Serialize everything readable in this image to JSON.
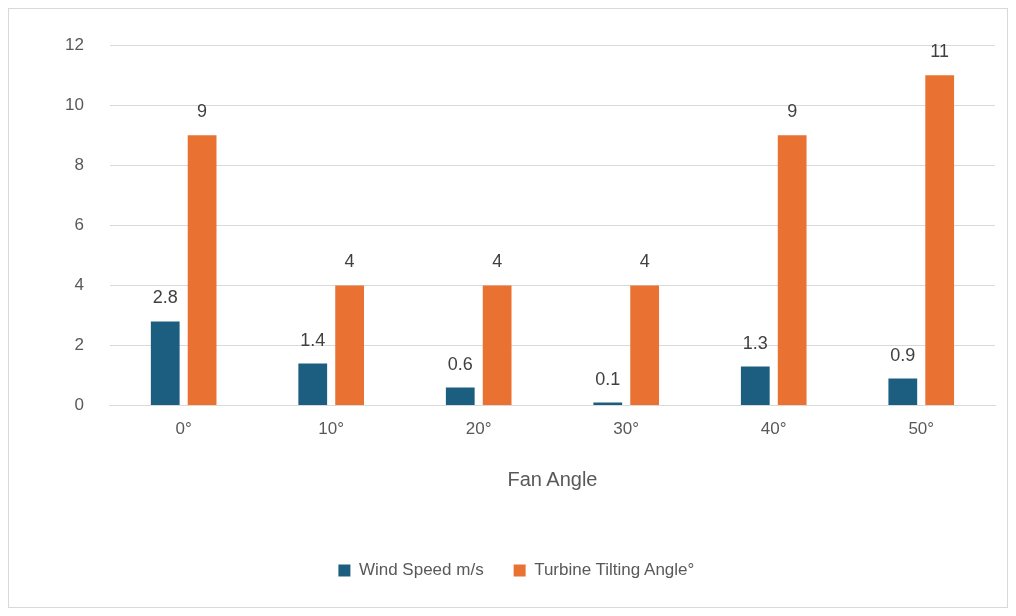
{
  "chart_data": {
    "type": "bar",
    "xlabel": "Fan Angle",
    "categories": [
      "0°",
      "10°",
      "20°",
      "30°",
      "40°",
      "50°"
    ],
    "series": [
      {
        "name": "Wind Speed m/s",
        "color": "#1b5e80",
        "values": [
          2.8,
          1.4,
          0.6,
          0.1,
          1.3,
          0.9
        ]
      },
      {
        "name": "Turbine Tilting Angle°",
        "color": "#e97132",
        "values": [
          9,
          4,
          4,
          4,
          9,
          11
        ]
      }
    ],
    "ylim": [
      0,
      12
    ],
    "yticks": [
      0,
      2,
      4,
      6,
      8,
      10,
      12
    ],
    "grid": "y",
    "legend": "bottom",
    "data_labels": true
  }
}
